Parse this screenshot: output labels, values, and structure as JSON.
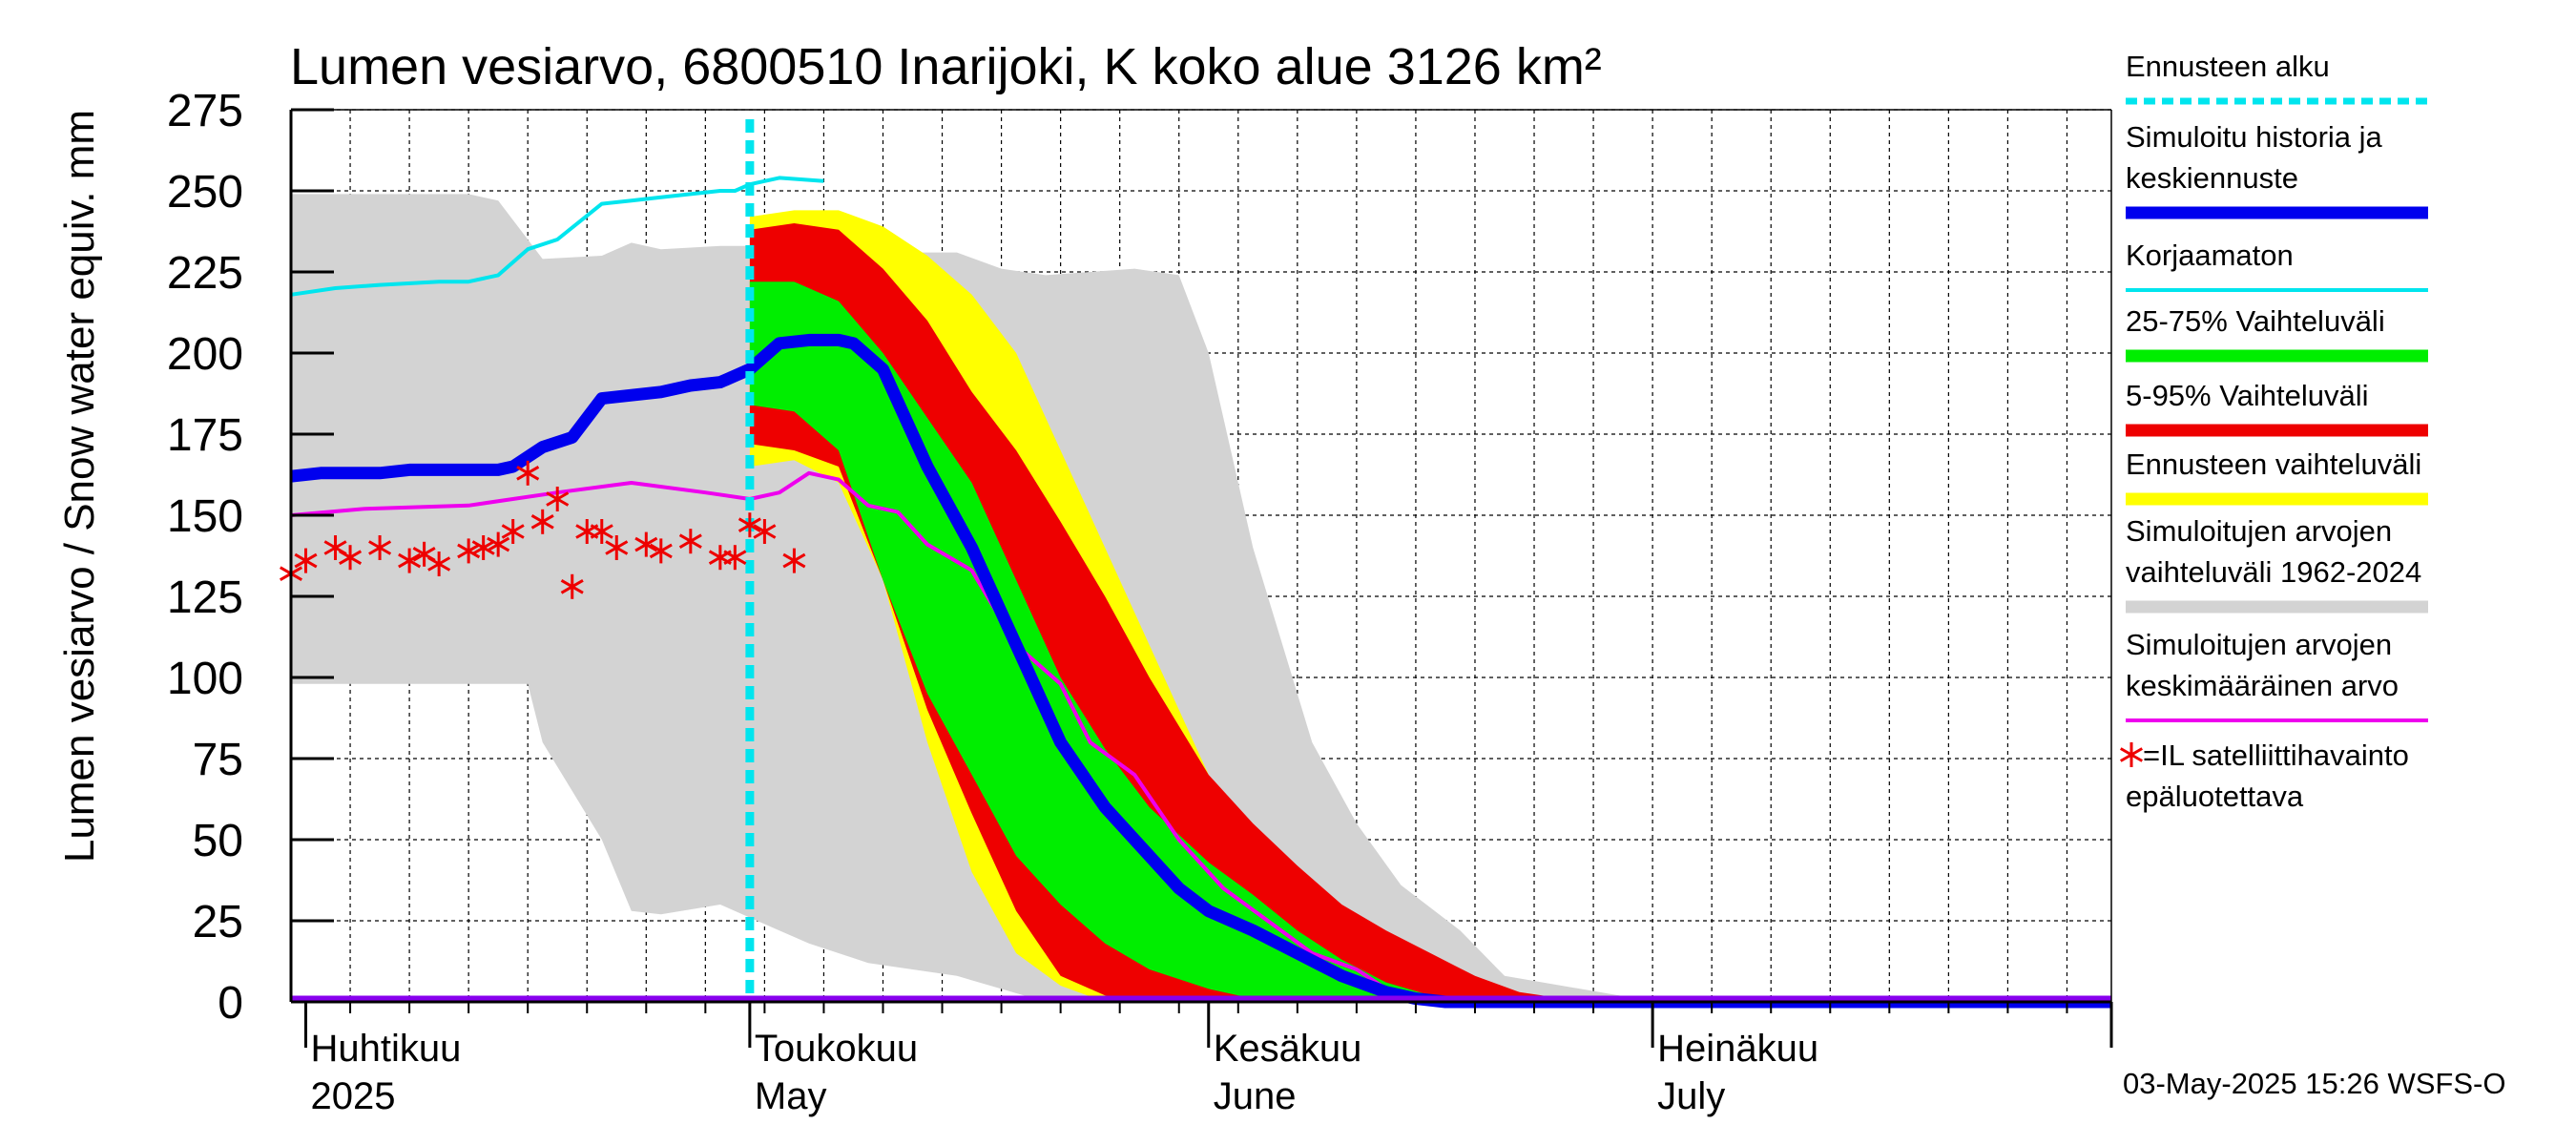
{
  "chart_data": {
    "type": "area",
    "title": "Lumen vesiarvo, 6800510 Inarijoki, K koko alue 3126 km²",
    "ylabel": "Lumen vesiarvo / Snow water equiv.    mm",
    "ylim": [
      0,
      275
    ],
    "yticks": [
      0,
      25,
      50,
      75,
      100,
      125,
      150,
      175,
      200,
      225,
      250,
      275
    ],
    "ytick_labels": [
      "0",
      "25",
      "50",
      "75",
      "100",
      "125",
      "150",
      "175",
      "200",
      "225",
      "250",
      "275"
    ],
    "xlim": [
      "2025-03-31",
      "2025-08-01"
    ],
    "month_labels": [
      {
        "date": "2025-04-01",
        "fi": "Huhtikuu",
        "en": "2025"
      },
      {
        "date": "2025-05-01",
        "fi": "Toukokuu",
        "en": "May"
      },
      {
        "date": "2025-06-01",
        "fi": "Kesäkuu",
        "en": "June"
      },
      {
        "date": "2025-07-01",
        "fi": "Heinäkuu",
        "en": "July"
      }
    ],
    "forecast_start": "2025-05-01",
    "grid": true,
    "legend_position": "right",
    "legend": [
      {
        "key": "forecast_start",
        "text": [
          "Ennusteen alku"
        ],
        "color": "#00e5ee",
        "style": "dotted"
      },
      {
        "key": "simulated",
        "text": [
          "Simuloitu historia ja",
          "keskiennuste"
        ],
        "color": "#0000ee",
        "style": "thick"
      },
      {
        "key": "uncorrected",
        "text": [
          "Korjaamaton"
        ],
        "color": "#00e5ee",
        "style": "line"
      },
      {
        "key": "band_25_75",
        "text": [
          "25-75% Vaihteluväli"
        ],
        "color": "#00ee00",
        "style": "thick"
      },
      {
        "key": "band_5_95",
        "text": [
          "5-95% Vaihteluväli"
        ],
        "color": "#ee0000",
        "style": "thick"
      },
      {
        "key": "band_forecast",
        "text": [
          "Ennusteen vaihteluväli"
        ],
        "color": "#ffff00",
        "style": "thick"
      },
      {
        "key": "band_hist",
        "text": [
          "Simuloitujen arvojen",
          "vaihteluväli 1962-2024"
        ],
        "color": "#d3d3d3",
        "style": "thick"
      },
      {
        "key": "hist_mean",
        "text": [
          "Simuloitujen arvojen",
          "keskimääräinen arvo"
        ],
        "color": "#ee00ee",
        "style": "line"
      },
      {
        "key": "satellite",
        "text": [
          "=IL satelliittihavainto",
          "epäluotettava"
        ],
        "color": "#ee0000",
        "style": "star"
      }
    ],
    "footer": "03-May-2025 15:26 WSFS-O",
    "series": {
      "hist_band": {
        "x": [
          "2025-03-31",
          "2025-04-12",
          "2025-04-14",
          "2025-04-16",
          "2025-04-17",
          "2025-04-21",
          "2025-04-23",
          "2025-04-25",
          "2025-04-29",
          "2025-05-03",
          "2025-05-05",
          "2025-05-09",
          "2025-05-15",
          "2025-05-18",
          "2025-05-21",
          "2025-05-27",
          "2025-05-30",
          "2025-06-01",
          "2025-06-04",
          "2025-06-08",
          "2025-06-11",
          "2025-06-14",
          "2025-06-18",
          "2025-06-21",
          "2025-06-30",
          "2025-08-01"
        ],
        "upper": [
          249,
          249,
          247,
          235,
          229,
          230,
          234,
          232,
          233,
          233,
          233,
          231,
          231,
          226,
          224,
          226,
          224,
          200,
          140,
          80,
          55,
          36,
          22,
          8,
          1,
          1
        ],
        "lower": [
          98,
          98,
          98,
          98,
          80,
          50,
          28,
          27,
          30,
          22,
          18,
          12,
          8,
          4,
          0,
          0,
          0,
          0,
          0,
          0,
          0,
          0,
          0,
          0,
          0,
          0
        ]
      },
      "forecast_band": {
        "x": [
          "2025-05-01",
          "2025-05-04",
          "2025-05-07",
          "2025-05-10",
          "2025-05-13",
          "2025-05-16",
          "2025-05-19",
          "2025-05-22",
          "2025-05-25",
          "2025-05-28",
          "2025-06-01",
          "2025-06-04",
          "2025-06-07",
          "2025-06-10",
          "2025-06-13",
          "2025-06-16",
          "2025-06-19",
          "2025-06-22",
          "2025-06-25",
          "2025-06-28",
          "2025-07-01",
          "2025-08-01"
        ],
        "upper": [
          242,
          244,
          244,
          239,
          230,
          218,
          200,
          170,
          140,
          110,
          70,
          47,
          37,
          25,
          18,
          10,
          5,
          2,
          1,
          1,
          0,
          0
        ],
        "lower": [
          165,
          167,
          160,
          130,
          80,
          40,
          15,
          5,
          0,
          0,
          0,
          0,
          0,
          0,
          0,
          0,
          0,
          0,
          0,
          0,
          0,
          0
        ]
      },
      "band_5_95": {
        "x": [
          "2025-05-01",
          "2025-05-04",
          "2025-05-07",
          "2025-05-10",
          "2025-05-13",
          "2025-05-16",
          "2025-05-19",
          "2025-05-22",
          "2025-05-25",
          "2025-05-28",
          "2025-06-01",
          "2025-06-04",
          "2025-06-07",
          "2025-06-10",
          "2025-06-13",
          "2025-06-16",
          "2025-06-19",
          "2025-06-22",
          "2025-06-25",
          "2025-06-28",
          "2025-07-01",
          "2025-08-01"
        ],
        "upper": [
          238,
          240,
          238,
          226,
          210,
          188,
          170,
          148,
          125,
          100,
          70,
          55,
          42,
          30,
          22,
          15,
          8,
          3,
          1,
          0,
          0,
          0
        ],
        "lower": [
          172,
          170,
          165,
          130,
          90,
          58,
          28,
          8,
          2,
          0,
          0,
          0,
          0,
          0,
          0,
          0,
          0,
          0,
          0,
          0,
          0,
          0
        ]
      },
      "band_25_75": {
        "x": [
          "2025-05-01",
          "2025-05-04",
          "2025-05-07",
          "2025-05-10",
          "2025-05-13",
          "2025-05-16",
          "2025-05-19",
          "2025-05-22",
          "2025-05-25",
          "2025-05-28",
          "2025-06-01",
          "2025-06-04",
          "2025-06-07",
          "2025-06-10",
          "2025-06-13",
          "2025-06-16",
          "2025-06-19",
          "2025-06-22",
          "2025-06-25",
          "2025-06-28",
          "2025-07-01",
          "2025-08-01"
        ],
        "upper": [
          222,
          222,
          216,
          200,
          180,
          160,
          130,
          100,
          78,
          60,
          43,
          33,
          22,
          13,
          6,
          2,
          0,
          0,
          0,
          0,
          0,
          0
        ],
        "lower": [
          184,
          182,
          170,
          130,
          95,
          70,
          45,
          30,
          18,
          10,
          4,
          1,
          0,
          0,
          0,
          0,
          0,
          0,
          0,
          0,
          0,
          0
        ]
      },
      "simulated": {
        "x": [
          "2025-03-31",
          "2025-04-02",
          "2025-04-06",
          "2025-04-08",
          "2025-04-10",
          "2025-04-12",
          "2025-04-14",
          "2025-04-15",
          "2025-04-17",
          "2025-04-19",
          "2025-04-21",
          "2025-04-23",
          "2025-04-25",
          "2025-04-27",
          "2025-04-29",
          "2025-04-30",
          "2025-05-01",
          "2025-05-03",
          "2025-05-05",
          "2025-05-07",
          "2025-05-08",
          "2025-05-10",
          "2025-05-13",
          "2025-05-16",
          "2025-05-19",
          "2025-05-22",
          "2025-05-25",
          "2025-05-28",
          "2025-05-30",
          "2025-06-01",
          "2025-06-04",
          "2025-06-07",
          "2025-06-10",
          "2025-06-13",
          "2025-06-15",
          "2025-06-17",
          "2025-06-20",
          "2025-08-01"
        ],
        "values": [
          162,
          163,
          163,
          164,
          164,
          164,
          164,
          165,
          171,
          174,
          186,
          187,
          188,
          190,
          191,
          193,
          195,
          203,
          204,
          204,
          203,
          195,
          165,
          140,
          110,
          80,
          60,
          45,
          35,
          28,
          22,
          15,
          8,
          3,
          1,
          0,
          0,
          0
        ]
      },
      "uncorrected": {
        "x": [
          "2025-03-31",
          "2025-04-03",
          "2025-04-06",
          "2025-04-10",
          "2025-04-12",
          "2025-04-14",
          "2025-04-16",
          "2025-04-18",
          "2025-04-21",
          "2025-04-23",
          "2025-04-25",
          "2025-04-27",
          "2025-04-29",
          "2025-04-30",
          "2025-05-01",
          "2025-05-03",
          "2025-05-06"
        ],
        "values": [
          218,
          220,
          221,
          222,
          222,
          224,
          232,
          235,
          246,
          247,
          248,
          249,
          250,
          250,
          252,
          254,
          253
        ]
      },
      "hist_mean": {
        "x": [
          "2025-03-31",
          "2025-04-05",
          "2025-04-12",
          "2025-04-18",
          "2025-04-23",
          "2025-04-28",
          "2025-05-01",
          "2025-05-03",
          "2025-05-05",
          "2025-05-07",
          "2025-05-09",
          "2025-05-11",
          "2025-05-13",
          "2025-05-16",
          "2025-05-19",
          "2025-05-22",
          "2025-05-24",
          "2025-05-27",
          "2025-05-30",
          "2025-06-02",
          "2025-06-05",
          "2025-06-08",
          "2025-06-11",
          "2025-06-13",
          "2025-06-15",
          "2025-08-01"
        ],
        "values": [
          150,
          152,
          153,
          157,
          160,
          157,
          155,
          157,
          163,
          161,
          153,
          151,
          141,
          133,
          110,
          98,
          80,
          70,
          50,
          35,
          25,
          15,
          10,
          4,
          1,
          0
        ]
      },
      "satellite": {
        "x": [
          "2025-03-31",
          "2025-04-01",
          "2025-04-03",
          "2025-04-04",
          "2025-04-06",
          "2025-04-08",
          "2025-04-09",
          "2025-04-10",
          "2025-04-12",
          "2025-04-13",
          "2025-04-14",
          "2025-04-15",
          "2025-04-16",
          "2025-04-17",
          "2025-04-18",
          "2025-04-19",
          "2025-04-20",
          "2025-04-21",
          "2025-04-22",
          "2025-04-24",
          "2025-04-25",
          "2025-04-27",
          "2025-04-29",
          "2025-04-30",
          "2025-05-01",
          "2025-05-02",
          "2025-05-04"
        ],
        "values": [
          132,
          136,
          140,
          137,
          140,
          136,
          138,
          135,
          139,
          140,
          141,
          145,
          163,
          148,
          155,
          128,
          145,
          145,
          140,
          141,
          139,
          142,
          137,
          137,
          147,
          145,
          136
        ]
      }
    }
  }
}
